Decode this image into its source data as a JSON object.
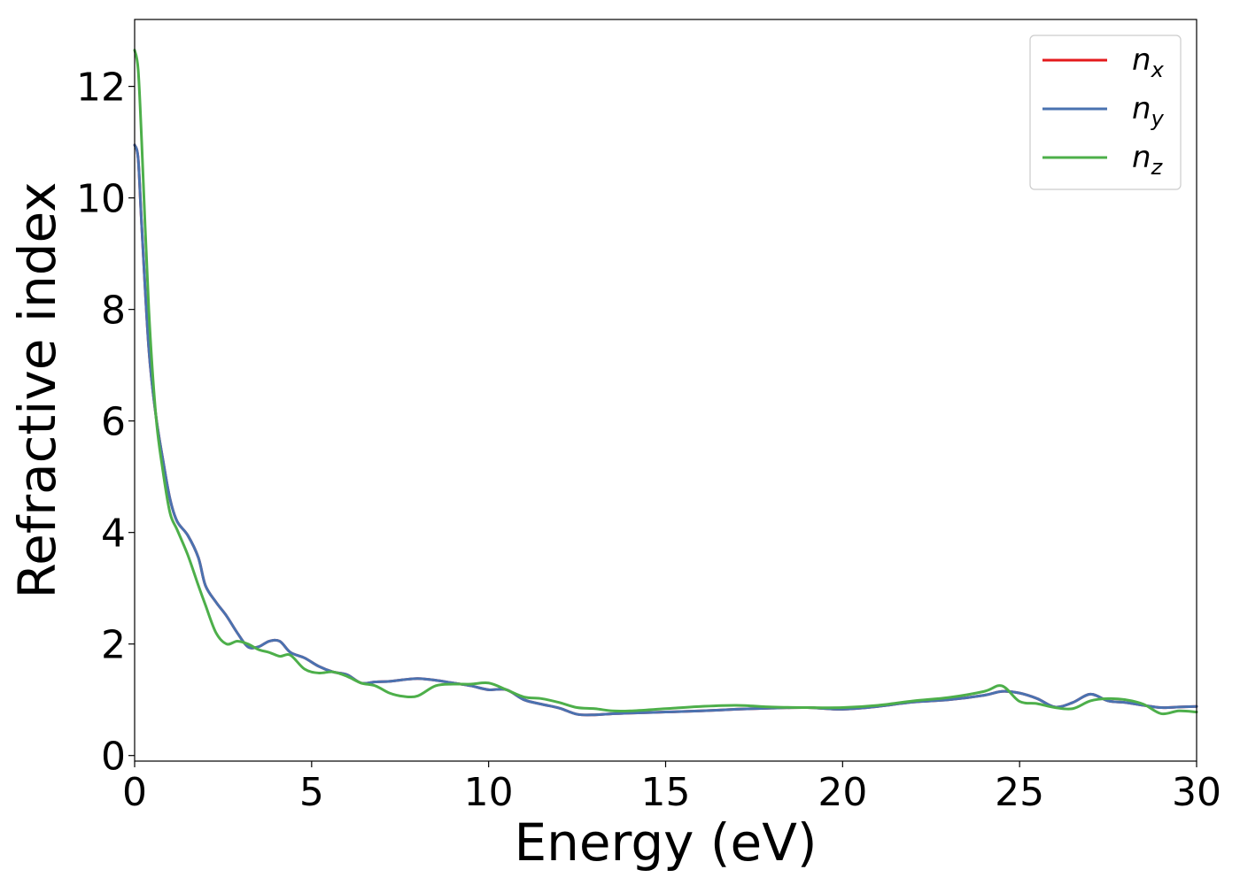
{
  "chart_data": {
    "type": "line",
    "xlabel": "Energy (eV)",
    "ylabel": "Refractive index",
    "xlim": [
      0,
      30
    ],
    "ylim": [
      -0.1,
      13.2
    ],
    "xticks": [
      0,
      5,
      10,
      15,
      20,
      25,
      30
    ],
    "yticks": [
      0,
      2,
      4,
      6,
      8,
      10,
      12
    ],
    "grid": false,
    "legend_position": "top-right",
    "series": [
      {
        "name": "n",
        "subscript": "x",
        "color": "#e41a1c",
        "x": [
          0,
          0.1,
          0.2,
          0.4,
          0.6,
          0.8,
          1.0,
          1.2,
          1.5,
          1.8,
          2.0,
          2.3,
          2.6,
          2.9,
          3.2,
          3.5,
          3.8,
          4.1,
          4.4,
          4.8,
          5.2,
          5.6,
          6.0,
          6.4,
          6.8,
          7.2,
          7.6,
          8.0,
          8.5,
          9.0,
          9.5,
          10.0,
          10.5,
          11.0,
          11.5,
          12.0,
          12.5,
          13.0,
          13.5,
          14.0,
          15.0,
          16.0,
          17.0,
          18.0,
          19.0,
          20.0,
          21.0,
          22.0,
          23.0,
          24.0,
          24.5,
          25.0,
          25.5,
          26.0,
          26.5,
          27.0,
          27.5,
          28.0,
          28.5,
          29.0,
          29.5,
          30.0
        ],
        "values": [
          10.95,
          10.7,
          9.5,
          7.3,
          6.1,
          5.3,
          4.6,
          4.2,
          3.95,
          3.55,
          3.05,
          2.75,
          2.5,
          2.2,
          1.95,
          1.95,
          2.05,
          2.05,
          1.85,
          1.75,
          1.6,
          1.5,
          1.45,
          1.3,
          1.32,
          1.33,
          1.36,
          1.38,
          1.35,
          1.3,
          1.25,
          1.18,
          1.18,
          1.0,
          0.92,
          0.85,
          0.74,
          0.73,
          0.75,
          0.76,
          0.78,
          0.8,
          0.83,
          0.85,
          0.86,
          0.83,
          0.88,
          0.96,
          1.0,
          1.08,
          1.15,
          1.12,
          1.02,
          0.87,
          0.95,
          1.1,
          0.98,
          0.95,
          0.9,
          0.86,
          0.87,
          0.88
        ]
      },
      {
        "name": "n",
        "subscript": "y",
        "color": "#4a72b0",
        "x": [
          0,
          0.1,
          0.2,
          0.4,
          0.6,
          0.8,
          1.0,
          1.2,
          1.5,
          1.8,
          2.0,
          2.3,
          2.6,
          2.9,
          3.2,
          3.5,
          3.8,
          4.1,
          4.4,
          4.8,
          5.2,
          5.6,
          6.0,
          6.4,
          6.8,
          7.2,
          7.6,
          8.0,
          8.5,
          9.0,
          9.5,
          10.0,
          10.5,
          11.0,
          11.5,
          12.0,
          12.5,
          13.0,
          13.5,
          14.0,
          15.0,
          16.0,
          17.0,
          18.0,
          19.0,
          20.0,
          21.0,
          22.0,
          23.0,
          24.0,
          24.5,
          25.0,
          25.5,
          26.0,
          26.5,
          27.0,
          27.5,
          28.0,
          28.5,
          29.0,
          29.5,
          30.0
        ],
        "values": [
          10.95,
          10.7,
          9.5,
          7.3,
          6.1,
          5.3,
          4.6,
          4.2,
          3.95,
          3.55,
          3.05,
          2.75,
          2.5,
          2.2,
          1.95,
          1.95,
          2.05,
          2.05,
          1.85,
          1.75,
          1.6,
          1.5,
          1.45,
          1.3,
          1.32,
          1.33,
          1.36,
          1.38,
          1.35,
          1.3,
          1.25,
          1.18,
          1.18,
          1.0,
          0.92,
          0.85,
          0.74,
          0.73,
          0.75,
          0.76,
          0.78,
          0.8,
          0.83,
          0.85,
          0.86,
          0.83,
          0.88,
          0.96,
          1.0,
          1.08,
          1.15,
          1.12,
          1.02,
          0.87,
          0.95,
          1.1,
          0.98,
          0.95,
          0.9,
          0.86,
          0.87,
          0.88
        ]
      },
      {
        "name": "n",
        "subscript": "z",
        "color": "#4daf4a",
        "x": [
          0,
          0.1,
          0.2,
          0.4,
          0.6,
          0.8,
          1.0,
          1.2,
          1.5,
          1.8,
          2.0,
          2.3,
          2.6,
          2.9,
          3.2,
          3.5,
          3.8,
          4.1,
          4.4,
          4.8,
          5.2,
          5.6,
          6.0,
          6.4,
          6.8,
          7.2,
          7.6,
          8.0,
          8.5,
          9.0,
          9.5,
          10.0,
          10.5,
          11.0,
          11.5,
          12.0,
          12.5,
          13.0,
          13.5,
          14.0,
          15.0,
          16.0,
          17.0,
          18.0,
          19.0,
          20.0,
          21.0,
          22.0,
          23.0,
          24.0,
          24.5,
          25.0,
          25.5,
          26.0,
          26.5,
          27.0,
          27.5,
          28.0,
          28.5,
          29.0,
          29.5,
          30.0
        ],
        "values": [
          12.65,
          12.3,
          11.0,
          8.0,
          6.1,
          5.1,
          4.35,
          4.05,
          3.6,
          3.05,
          2.7,
          2.2,
          2.0,
          2.05,
          2.0,
          1.9,
          1.85,
          1.78,
          1.8,
          1.55,
          1.48,
          1.5,
          1.42,
          1.3,
          1.25,
          1.12,
          1.06,
          1.07,
          1.25,
          1.28,
          1.28,
          1.3,
          1.18,
          1.05,
          1.02,
          0.95,
          0.86,
          0.84,
          0.8,
          0.8,
          0.84,
          0.88,
          0.9,
          0.87,
          0.86,
          0.86,
          0.9,
          0.98,
          1.04,
          1.15,
          1.25,
          0.97,
          0.93,
          0.86,
          0.84,
          0.98,
          1.02,
          1.0,
          0.92,
          0.75,
          0.8,
          0.78
        ]
      }
    ]
  }
}
